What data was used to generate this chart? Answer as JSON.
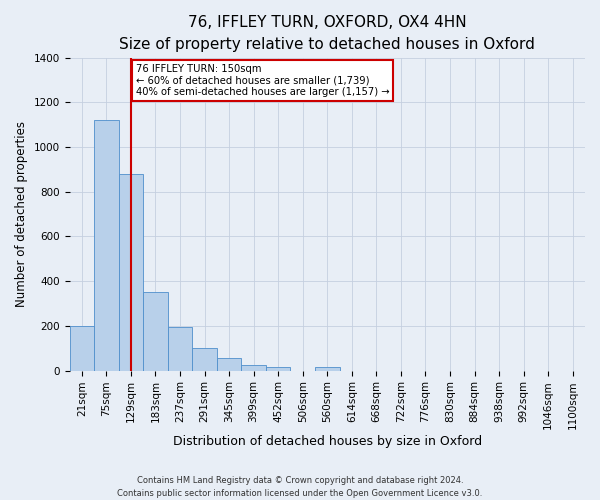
{
  "title": "76, IFFLEY TURN, OXFORD, OX4 4HN",
  "subtitle": "Size of property relative to detached houses in Oxford",
  "xlabel": "Distribution of detached houses by size in Oxford",
  "ylabel": "Number of detached properties",
  "bar_labels": [
    "21sqm",
    "75sqm",
    "129sqm",
    "183sqm",
    "237sqm",
    "291sqm",
    "345sqm",
    "399sqm",
    "452sqm",
    "506sqm",
    "560sqm",
    "614sqm",
    "668sqm",
    "722sqm",
    "776sqm",
    "830sqm",
    "884sqm",
    "938sqm",
    "992sqm",
    "1046sqm",
    "1100sqm"
  ],
  "bar_values": [
    200,
    1120,
    880,
    350,
    195,
    100,
    55,
    25,
    15,
    0,
    15,
    0,
    0,
    0,
    0,
    0,
    0,
    0,
    0,
    0,
    0
  ],
  "bar_color": "#b8d0ea",
  "bar_edge_color": "#4f8fcc",
  "vline_x_idx": 2,
  "vline_color": "#cc0000",
  "annotation_line1": "76 IFFLEY TURN: 150sqm",
  "annotation_line2": "← 60% of detached houses are smaller (1,739)",
  "annotation_line3": "40% of semi-detached houses are larger (1,157) →",
  "annotation_box_edgecolor": "#cc0000",
  "annotation_box_facecolor": "#ffffff",
  "ylim": [
    0,
    1400
  ],
  "yticks": [
    0,
    200,
    400,
    600,
    800,
    1000,
    1200,
    1400
  ],
  "title_fontsize": 11,
  "subtitle_fontsize": 9.5,
  "xlabel_fontsize": 9,
  "ylabel_fontsize": 8.5,
  "tick_fontsize": 7.5,
  "footer_text": "Contains HM Land Registry data © Crown copyright and database right 2024.\nContains public sector information licensed under the Open Government Licence v3.0.",
  "bg_color": "#e8eef6",
  "plot_bg_color": "#e8eef6",
  "grid_color": "#c5cfe0"
}
